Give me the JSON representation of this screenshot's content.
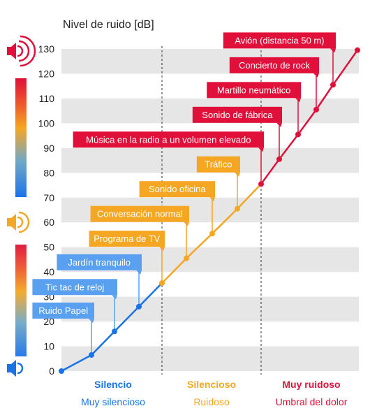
{
  "chart_data": {
    "type": "line",
    "title": "Nivel de ruido [dB]",
    "ylim": [
      0,
      130
    ],
    "yticks": [
      0,
      10,
      20,
      30,
      40,
      50,
      60,
      70,
      80,
      90,
      100,
      110,
      120,
      130
    ],
    "grid": "horizontal alternating bands",
    "colors": {
      "blue": "#1a73e8",
      "orange": "#f5a623",
      "red": "#e0103a",
      "band": "#e6e6e6",
      "label_blue": "#5aa0f0"
    },
    "points": [
      {
        "label": "",
        "y": 0,
        "zone": 0
      },
      {
        "label": "Ruido Papel",
        "y": 6.5,
        "zone": 0
      },
      {
        "label": "Tic tac de reloj",
        "y": 16,
        "zone": 0
      },
      {
        "label": "Jardín tranquilo",
        "y": 26,
        "zone": 0
      },
      {
        "label": "Programa de TV",
        "y": 35.5,
        "zone": 1
      },
      {
        "label": "Conversación normal",
        "y": 45.5,
        "zone": 1
      },
      {
        "label": "Sonido oficina",
        "y": 55.5,
        "zone": 1
      },
      {
        "label": "Tráfico",
        "y": 65.5,
        "zone": 1
      },
      {
        "label": "Música en la radio a un volumen elevado",
        "y": 75.5,
        "zone": 2
      },
      {
        "label": "Sonido de fábrica",
        "y": 85.5,
        "zone": 2
      },
      {
        "label": "Martillo neumático",
        "y": 95.5,
        "zone": 2
      },
      {
        "label": "Concierto de rock",
        "y": 105.5,
        "zone": 2
      },
      {
        "label": "Avión (distancia 50 m)",
        "y": 115.5,
        "zone": 2
      },
      {
        "label": "",
        "y": 129.5,
        "zone": 2
      }
    ],
    "zones": [
      {
        "title": "Silencio",
        "subtitle": "Muy silencioso",
        "color": "#1a73e8"
      },
      {
        "title": "Silencioso",
        "subtitle": "Ruidoso",
        "color": "#f5a623"
      },
      {
        "title": "Muy ruidoso",
        "subtitle": "Umbral del dolor",
        "color": "#e0103a"
      }
    ],
    "icons": [
      "speaker-loud-icon",
      "speaker-medium-icon",
      "speaker-low-icon"
    ]
  }
}
